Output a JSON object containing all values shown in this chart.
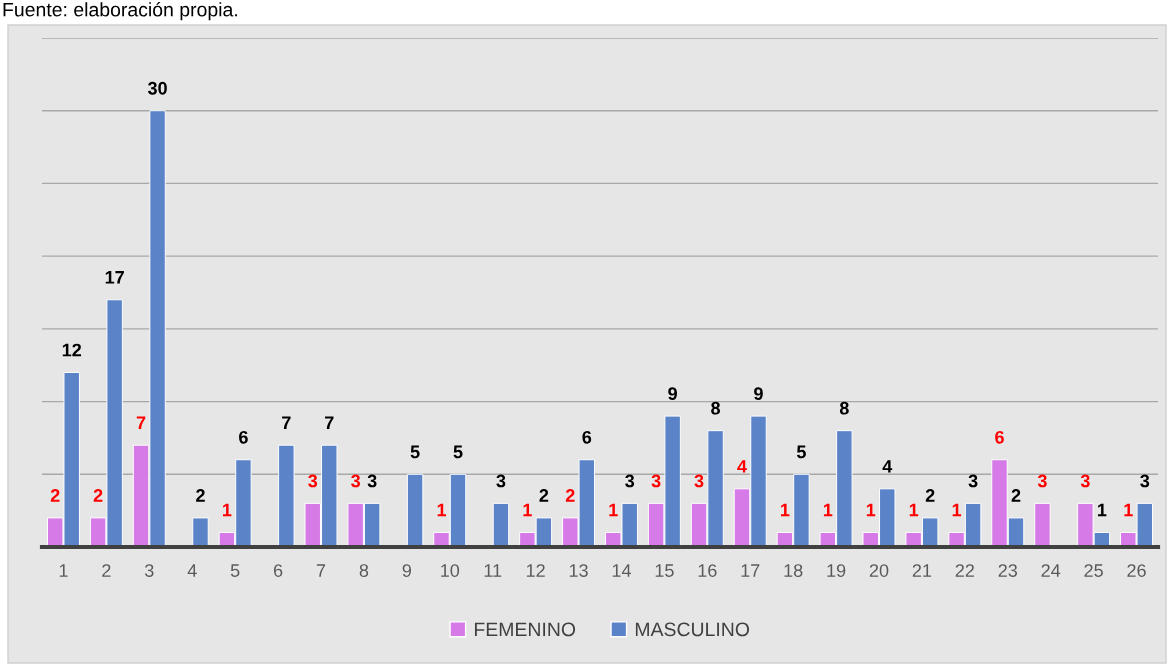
{
  "chart_data": {
    "type": "bar",
    "categories": [
      "1",
      "2",
      "3",
      "4",
      "5",
      "6",
      "7",
      "8",
      "9",
      "10",
      "11",
      "12",
      "13",
      "14",
      "15",
      "16",
      "17",
      "18",
      "19",
      "20",
      "21",
      "22",
      "23",
      "24",
      "25",
      "26"
    ],
    "series": [
      {
        "name": "FEMENINO",
        "color": "#d57ae6",
        "values": [
          2,
          2,
          7,
          null,
          1,
          null,
          3,
          3,
          null,
          1,
          null,
          1,
          2,
          1,
          3,
          3,
          4,
          1,
          1,
          1,
          1,
          1,
          6,
          3,
          3,
          1
        ]
      },
      {
        "name": "MASCULINO",
        "color": "#5b84c8",
        "values": [
          12,
          17,
          30,
          2,
          6,
          7,
          7,
          3,
          5,
          5,
          3,
          2,
          6,
          3,
          9,
          8,
          9,
          5,
          8,
          4,
          2,
          3,
          2,
          null,
          1,
          3
        ]
      }
    ],
    "ylim": [
      0,
      35
    ],
    "yticks": [
      {
        "value": 0,
        "label": null
      },
      {
        "value": 5,
        "label": null
      },
      {
        "value": 10,
        "label": null
      },
      {
        "value": 15,
        "label": null
      },
      {
        "value": 20,
        "label": null
      },
      {
        "value": 25,
        "label": null
      },
      {
        "value": 30,
        "label": null
      },
      {
        "value": 35,
        "label": null
      }
    ],
    "tick_labels": "x",
    "grid": "y",
    "legend": "bottom",
    "data_labels": true,
    "annotations": [
      "Fuente: elaboración propia."
    ]
  }
}
